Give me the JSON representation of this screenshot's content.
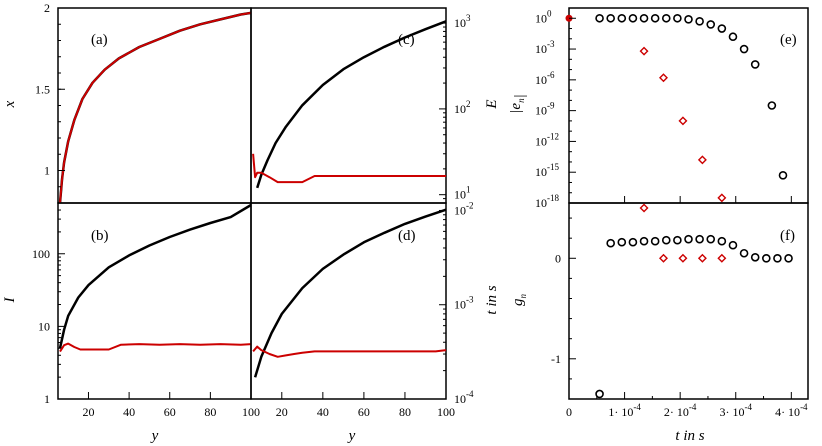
{
  "chart_data": [
    {
      "panel": "(a)",
      "type": "line",
      "xlabel": "y",
      "ylabel": "x",
      "xlim": [
        5,
        100
      ],
      "ylim": [
        0.8,
        2
      ],
      "yticks": [
        "1",
        "1.5",
        "2"
      ],
      "series": [
        {
          "color": "#000000",
          "x": [
            6,
            7,
            8,
            10,
            13,
            17,
            22,
            28,
            35,
            45,
            55,
            65,
            75,
            85,
            95,
            100
          ],
          "y": [
            0.8,
            0.95,
            1.05,
            1.18,
            1.31,
            1.44,
            1.54,
            1.62,
            1.69,
            1.76,
            1.81,
            1.86,
            1.9,
            1.93,
            1.96,
            1.97
          ]
        },
        {
          "color": "#cc0000",
          "x": [
            6,
            7,
            8,
            10,
            13,
            17,
            22,
            28,
            35,
            45,
            55,
            65,
            75,
            85,
            95,
            100
          ],
          "y": [
            0.8,
            0.95,
            1.05,
            1.18,
            1.31,
            1.44,
            1.54,
            1.62,
            1.69,
            1.76,
            1.81,
            1.86,
            1.9,
            1.93,
            1.96,
            1.97
          ]
        }
      ]
    },
    {
      "panel": "(b)",
      "type": "line",
      "xlabel": "y",
      "ylabel": "I",
      "xlim": [
        5,
        100
      ],
      "ylim": [
        1,
        500
      ],
      "yscale": "log",
      "xticks": [
        "20",
        "40",
        "60",
        "80",
        "100"
      ],
      "yticks": [
        "1",
        "10",
        "100"
      ],
      "series": [
        {
          "color": "#000000",
          "x": [
            6,
            8,
            10,
            15,
            20,
            30,
            40,
            50,
            60,
            70,
            80,
            90,
            100
          ],
          "y": [
            5,
            9,
            14,
            25,
            37,
            65,
            95,
            130,
            170,
            215,
            265,
            320,
            470
          ]
        },
        {
          "color": "#cc0000",
          "x": [
            6,
            8,
            10,
            13,
            16,
            20,
            25,
            30,
            36,
            45,
            55,
            65,
            75,
            85,
            95,
            100
          ],
          "y": [
            4.5,
            5.5,
            5.8,
            5.2,
            4.8,
            4.8,
            4.8,
            4.8,
            5.6,
            5.7,
            5.6,
            5.7,
            5.6,
            5.7,
            5.6,
            5.7
          ]
        }
      ]
    },
    {
      "panel": "(c)",
      "type": "line",
      "xlabel": "",
      "ylabel": "E",
      "xlim": [
        5,
        100
      ],
      "ylim": [
        8,
        1500
      ],
      "yscale": "log",
      "yticks": [
        "10^1",
        "10^2",
        "10^3"
      ],
      "series": [
        {
          "color": "#000000",
          "x": [
            8,
            10,
            13,
            17,
            22,
            30,
            40,
            50,
            60,
            70,
            80,
            90,
            100
          ],
          "y": [
            12,
            17,
            25,
            40,
            62,
            110,
            190,
            290,
            400,
            530,
            680,
            850,
            1050
          ]
        },
        {
          "color": "#cc0000",
          "x": [
            6,
            7,
            8,
            10,
            14,
            18,
            22,
            26,
            30,
            36,
            45,
            55,
            65,
            75,
            85,
            95,
            100
          ],
          "y": [
            30,
            16,
            18,
            18,
            16,
            14,
            14,
            14,
            14,
            16.5,
            16.5,
            16.5,
            16.5,
            16.5,
            16.5,
            16.5,
            16.5
          ]
        }
      ]
    },
    {
      "panel": "(d)",
      "type": "line",
      "xlabel": "y",
      "ylabel": "t in s",
      "xlim": [
        5,
        100
      ],
      "ylim": [
        0.0001,
        0.012
      ],
      "yscale": "log",
      "xticks": [
        "20",
        "40",
        "60",
        "80",
        "100"
      ],
      "yticks": [
        "10^-4",
        "10^-3",
        "10^-2"
      ],
      "series": [
        {
          "color": "#000000",
          "x": [
            7,
            10,
            15,
            20,
            30,
            40,
            50,
            60,
            70,
            80,
            90,
            100
          ],
          "y": [
            0.00017,
            0.00028,
            0.0005,
            0.0008,
            0.0015,
            0.0024,
            0.0034,
            0.0046,
            0.0058,
            0.0072,
            0.0086,
            0.0102
          ]
        },
        {
          "color": "#cc0000",
          "x": [
            6,
            8,
            10,
            14,
            18,
            22,
            26,
            30,
            36,
            45,
            55,
            65,
            75,
            85,
            95,
            100
          ],
          "y": [
            0.00032,
            0.00036,
            0.00033,
            0.0003,
            0.00028,
            0.00029,
            0.0003,
            0.00031,
            0.00032,
            0.00032,
            0.00032,
            0.00032,
            0.00032,
            0.00032,
            0.00032,
            0.00033
          ]
        }
      ]
    },
    {
      "panel": "(e)",
      "type": "scatter",
      "xlabel": "",
      "ylabel": "|e_n|",
      "xlim": [
        0,
        0.00043
      ],
      "ylim": [
        -18,
        1
      ],
      "yscale": "log10 exponent",
      "yticks": [
        "10^0",
        "10^-3",
        "10^-6",
        "10^-9",
        "10^-12",
        "10^-15",
        "10^-18"
      ],
      "series": [
        {
          "marker": "circle",
          "color": "#000000",
          "x": [
            5.5e-05,
            7.5e-05,
            9.5e-05,
            0.000115,
            0.000135,
            0.000155,
            0.000175,
            0.000195,
            0.000215,
            0.000235,
            0.000255,
            0.000275,
            0.000295,
            0.000315,
            0.000335,
            0.000365,
            0.000385
          ],
          "y": [
            0,
            0,
            0,
            0,
            0,
            0,
            0,
            0,
            -0.1,
            -0.3,
            -0.6,
            -1,
            -1.8,
            -3,
            -4.5,
            -8.5,
            -15.3
          ]
        },
        {
          "marker": "diamond",
          "color": "#cc0000",
          "x": [
            0.000135,
            0.00017,
            0.000205,
            0.00024,
            0.000275
          ],
          "y": [
            -3.2,
            -5.8,
            -10,
            -13.8,
            -17.5
          ]
        },
        {
          "marker": "dot",
          "color": "#cc0000",
          "x": [
            0
          ],
          "y": [
            0
          ]
        }
      ]
    },
    {
      "panel": "(f)",
      "type": "scatter",
      "xlabel": "t  in s",
      "ylabel": "g_n",
      "xlim": [
        0,
        0.00043
      ],
      "ylim": [
        -1.4,
        0.55
      ],
      "xticks": [
        "0",
        "1· 10^-4",
        "2· 10^-4",
        "3· 10^-4",
        "4· 10^-4"
      ],
      "yticks": [
        "-1",
        "0"
      ],
      "series": [
        {
          "marker": "circle",
          "color": "#000000",
          "x": [
            5.5e-05,
            7.5e-05,
            9.5e-05,
            0.000115,
            0.000135,
            0.000155,
            0.000175,
            0.000195,
            0.000215,
            0.000235,
            0.000255,
            0.000275,
            0.000295,
            0.000315,
            0.000335,
            0.000355,
            0.000375,
            0.000395
          ],
          "y": [
            -1.35,
            0.15,
            0.16,
            0.16,
            0.17,
            0.17,
            0.18,
            0.18,
            0.19,
            0.19,
            0.19,
            0.17,
            0.13,
            0.05,
            0.01,
            0,
            0,
            0
          ]
        },
        {
          "marker": "diamond",
          "color": "#cc0000",
          "x": [
            0.000135,
            0.00017,
            0.000205,
            0.00024,
            0.000275
          ],
          "y": [
            0.5,
            0,
            0,
            0,
            0
          ]
        }
      ]
    }
  ]
}
